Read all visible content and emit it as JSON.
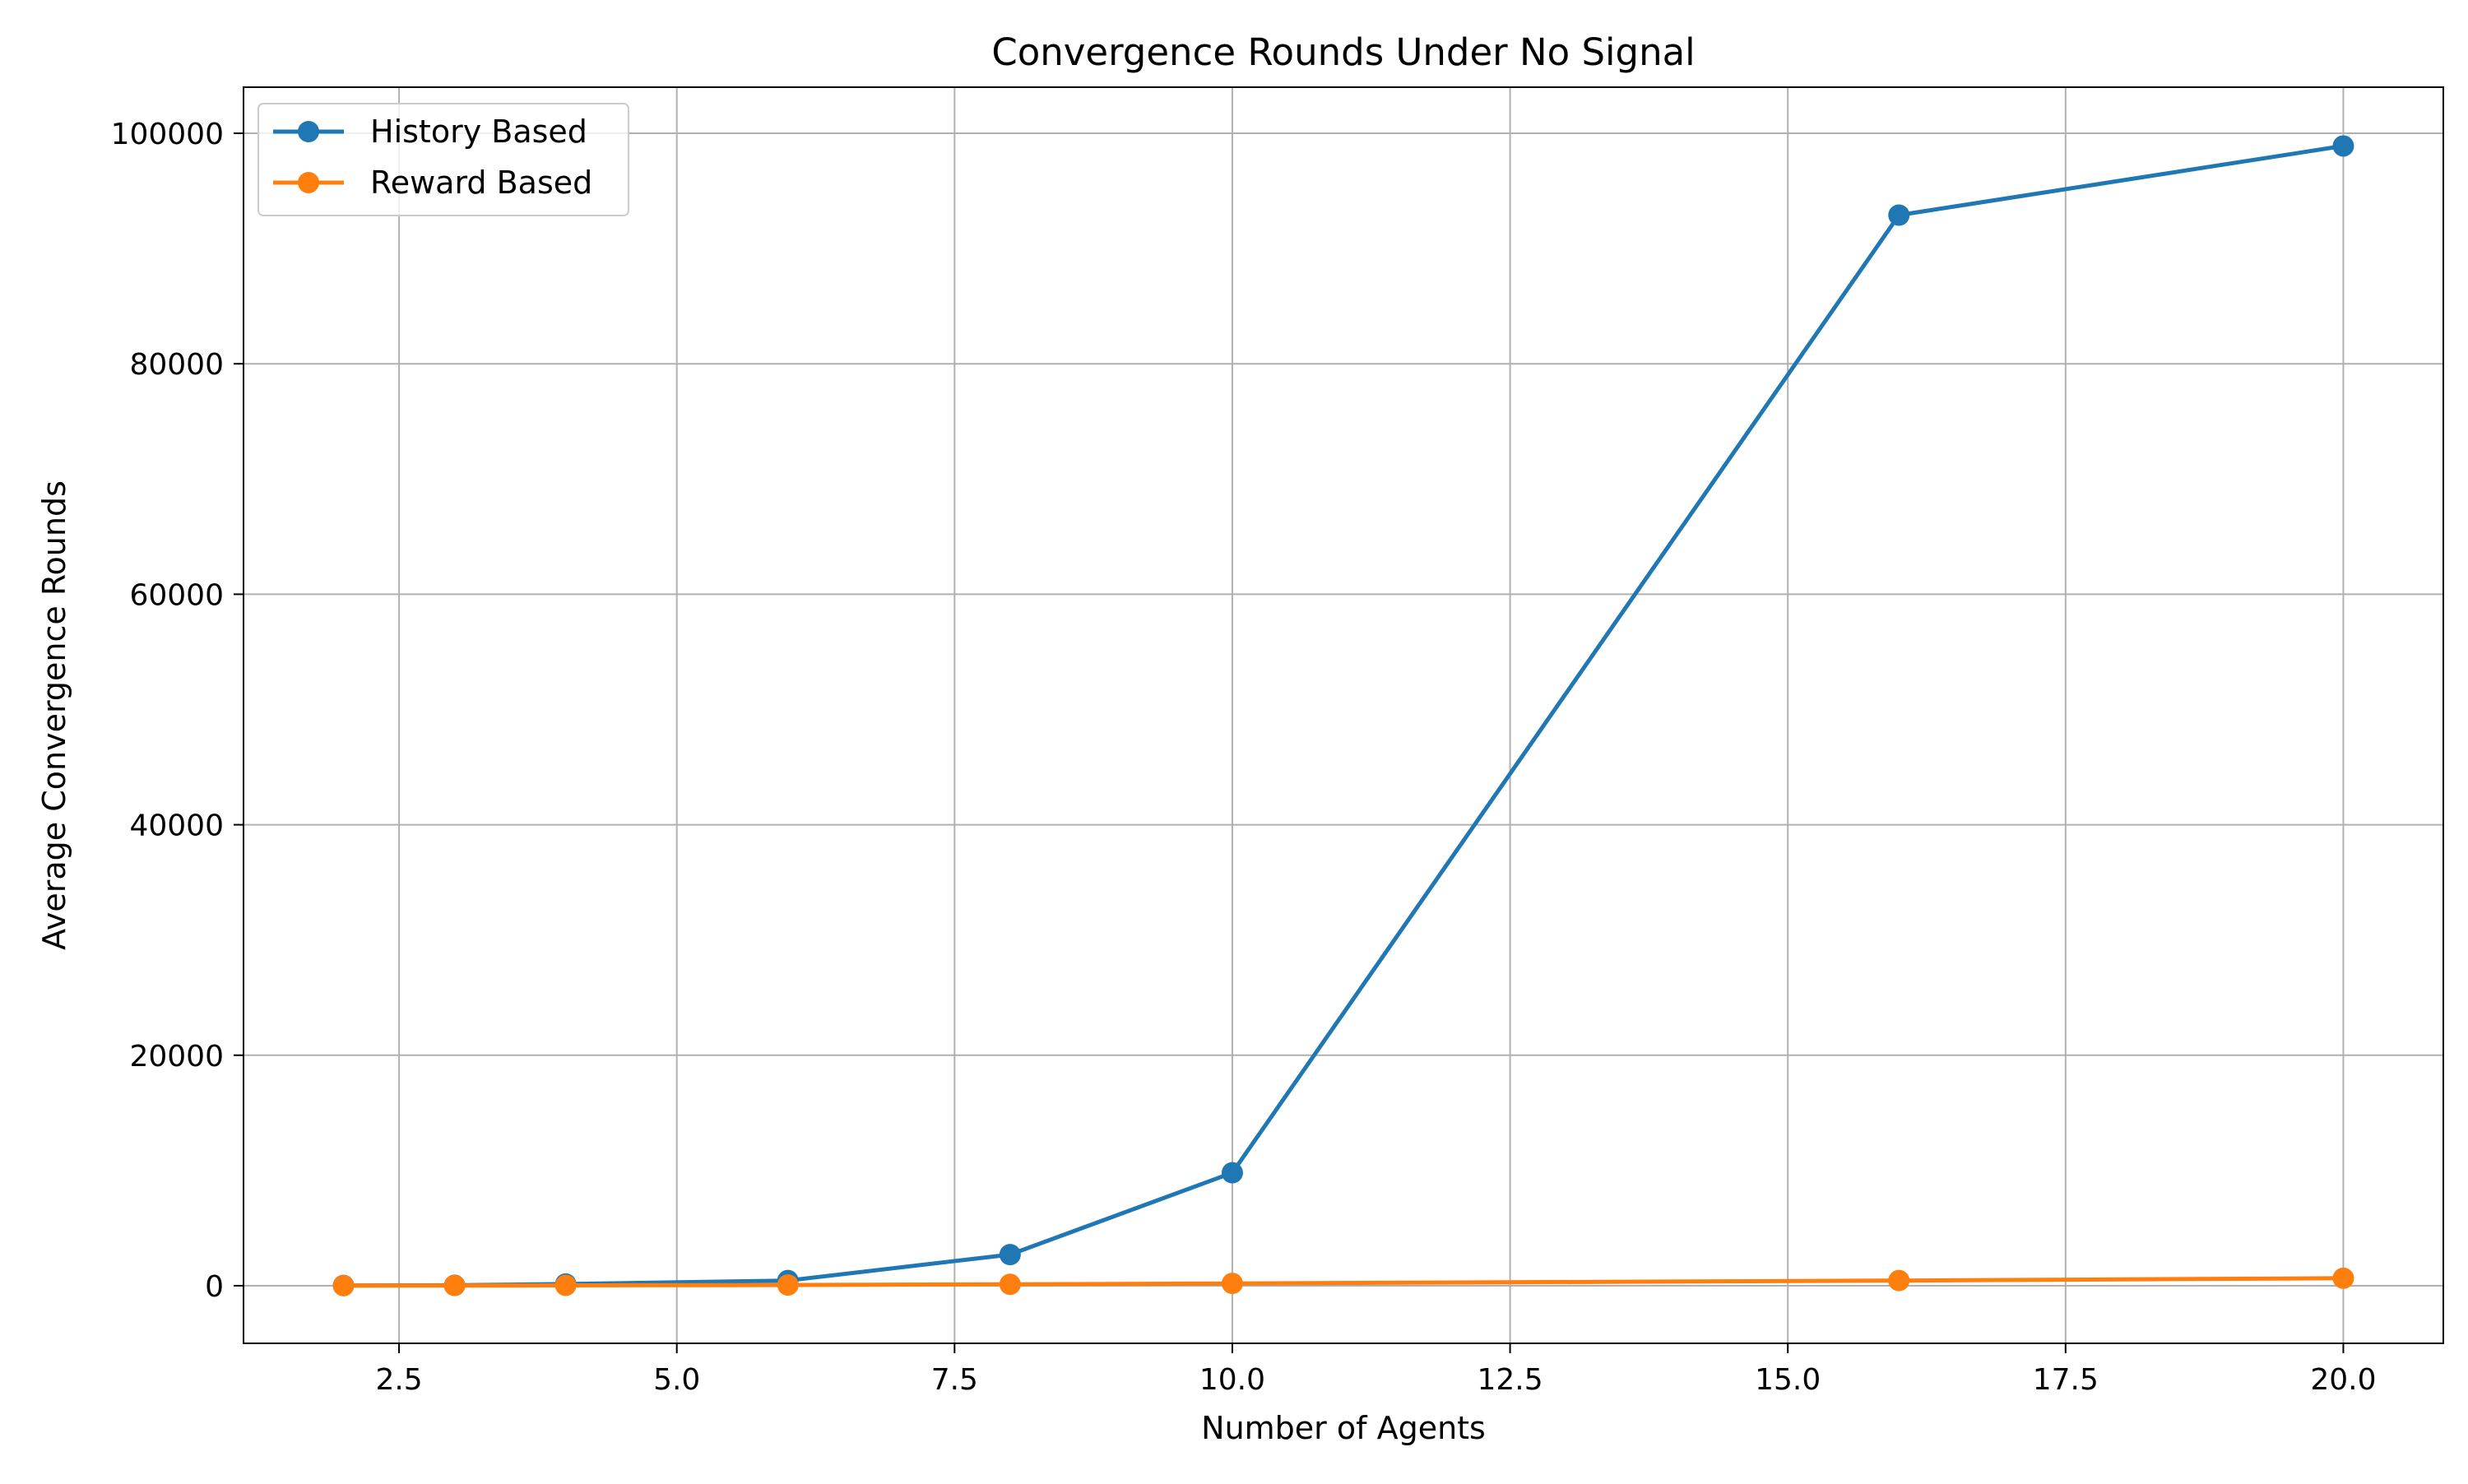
{
  "chart_data": {
    "type": "line",
    "title": "Convergence Rounds Under No Signal",
    "xlabel": "Number of Agents",
    "ylabel": "Average Convergence Rounds",
    "xlim": [
      1.1,
      20.9
    ],
    "ylim": [
      -5000,
      104000
    ],
    "xticks": [
      2.5,
      5.0,
      7.5,
      10.0,
      12.5,
      15.0,
      17.5,
      20.0
    ],
    "xtick_labels": [
      "2.5",
      "5.0",
      "7.5",
      "10.0",
      "12.5",
      "15.0",
      "17.5",
      "20.0"
    ],
    "yticks": [
      0,
      20000,
      40000,
      60000,
      80000,
      100000
    ],
    "ytick_labels": [
      "0",
      "20000",
      "40000",
      "60000",
      "80000",
      "100000"
    ],
    "grid": true,
    "legend_position": "top-left",
    "x": [
      2,
      3,
      4,
      6,
      8,
      10,
      16,
      20
    ],
    "series": [
      {
        "name": "History Based",
        "color": "#1f77b4",
        "marker": "circle",
        "values": [
          20,
          40,
          150,
          450,
          2700,
          9800,
          92900,
          98900
        ]
      },
      {
        "name": "Reward Based",
        "color": "#ff7f0e",
        "marker": "circle",
        "values": [
          10,
          20,
          30,
          60,
          120,
          200,
          450,
          650
        ]
      }
    ]
  }
}
